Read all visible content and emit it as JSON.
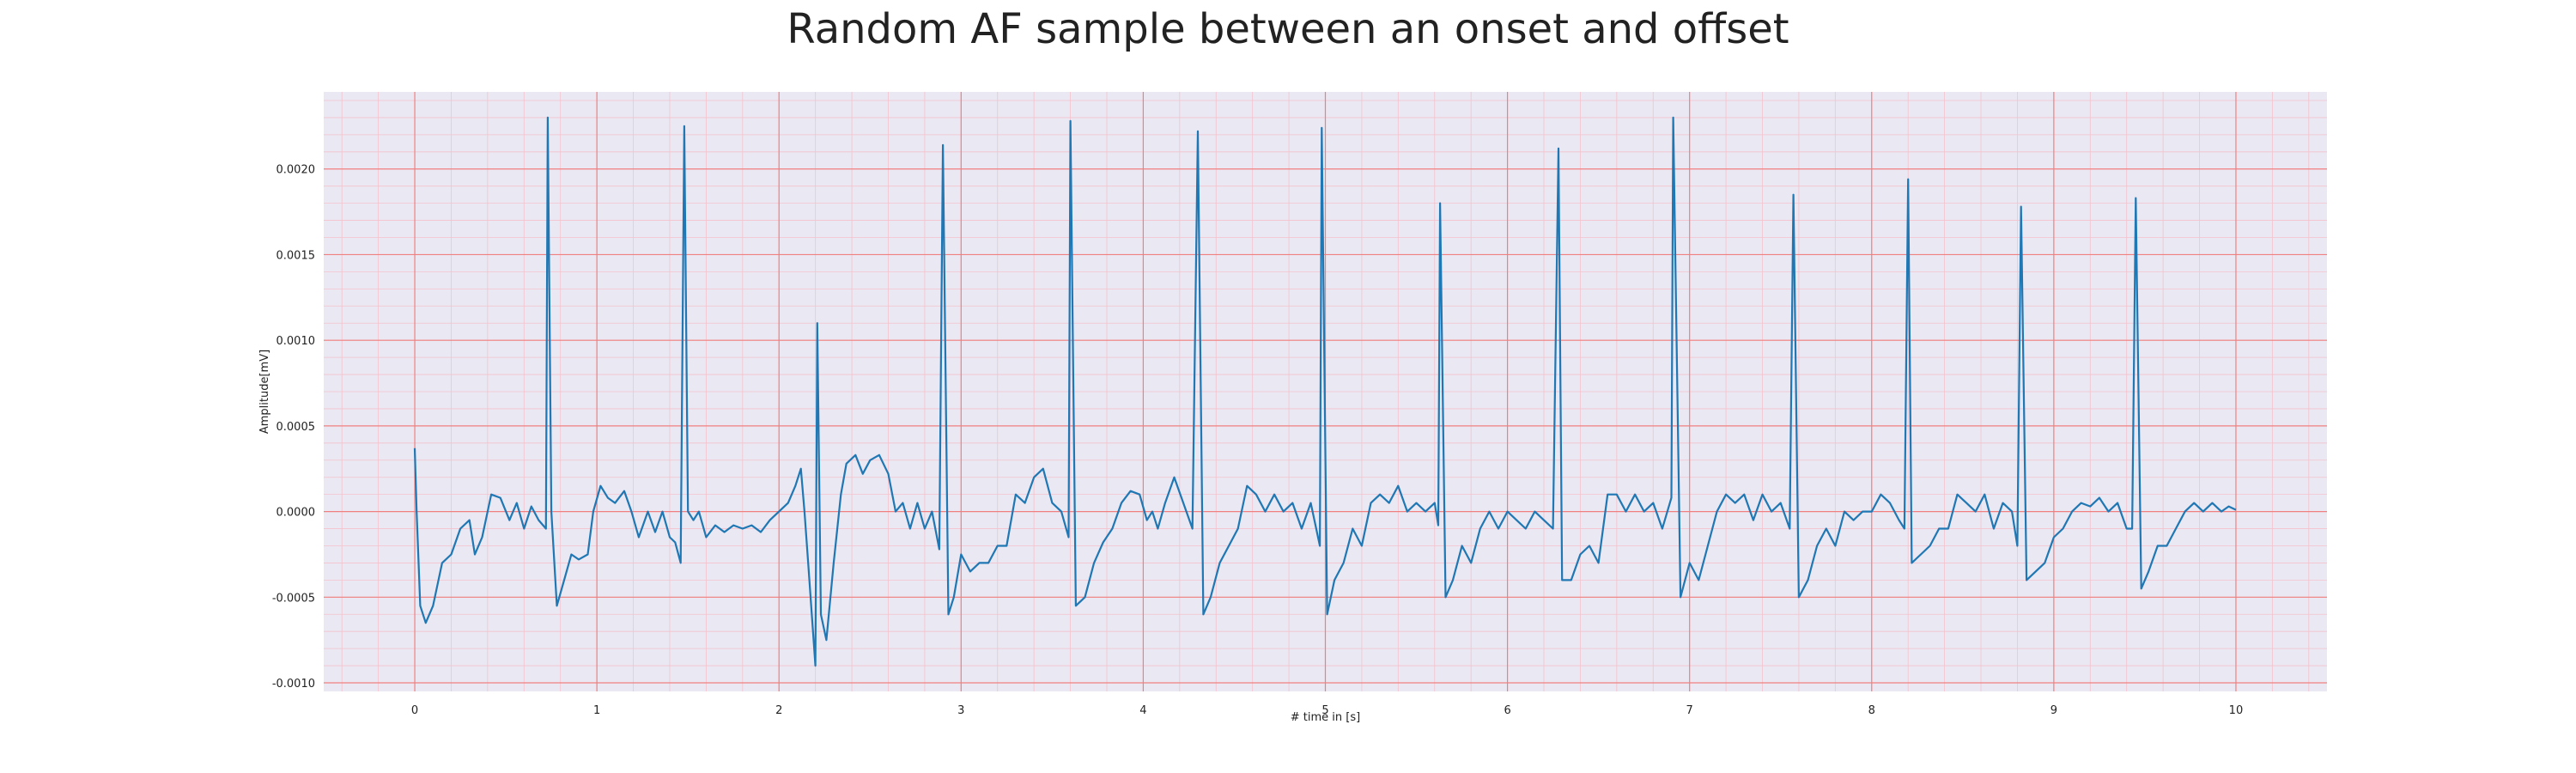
{
  "chart_data": {
    "type": "line",
    "title": "Random AF sample between an onset and offset",
    "xlabel": "# time in [s]",
    "ylabel": "Amplitude[mV]",
    "xlim": [
      -0.5,
      10.5
    ],
    "ylim": [
      -0.00105,
      0.00245
    ],
    "x_ticks": [
      0,
      1,
      2,
      3,
      4,
      5,
      6,
      7,
      8,
      9,
      10
    ],
    "x_tick_labels": [
      "0",
      "1",
      "2",
      "3",
      "4",
      "5",
      "6",
      "7",
      "8",
      "9",
      "10"
    ],
    "y_ticks": [
      -0.001,
      -0.0005,
      0.0,
      0.0005,
      0.001,
      0.0015,
      0.002
    ],
    "y_tick_labels": [
      "-0.0010",
      "-0.0005",
      "0.0000",
      "0.0005",
      "0.0010",
      "0.0015",
      "0.0020"
    ],
    "grid": true,
    "minor_grid": true,
    "colors": {
      "line": "#1f77b4",
      "background": "#eae8f2",
      "major_grid": "#f08080",
      "minor_grid": "#f4c2cc"
    },
    "series": [
      {
        "values": [
          [
            0.0,
            0.00037
          ],
          [
            0.01,
            0.0
          ],
          [
            0.03,
            -0.00055
          ],
          [
            0.06,
            -0.00065
          ],
          [
            0.1,
            -0.00055
          ],
          [
            0.15,
            -0.0003
          ],
          [
            0.2,
            -0.00025
          ],
          [
            0.25,
            -0.0001
          ],
          [
            0.3,
            -5e-05
          ],
          [
            0.33,
            -0.00025
          ],
          [
            0.37,
            -0.00015
          ],
          [
            0.42,
            0.0001
          ],
          [
            0.47,
            8e-05
          ],
          [
            0.52,
            -5e-05
          ],
          [
            0.56,
            5e-05
          ],
          [
            0.6,
            -0.0001
          ],
          [
            0.64,
            3e-05
          ],
          [
            0.68,
            -5e-05
          ],
          [
            0.72,
            -0.0001
          ],
          [
            0.73,
            0.0023
          ],
          [
            0.75,
            0.0
          ],
          [
            0.78,
            -0.00055
          ],
          [
            0.82,
            -0.0004
          ],
          [
            0.86,
            -0.00025
          ],
          [
            0.9,
            -0.00028
          ],
          [
            0.95,
            -0.00025
          ],
          [
            0.98,
            0.0
          ],
          [
            1.02,
            0.00015
          ],
          [
            1.06,
            8e-05
          ],
          [
            1.1,
            5e-05
          ],
          [
            1.15,
            0.00012
          ],
          [
            1.19,
            0.0
          ],
          [
            1.23,
            -0.00015
          ],
          [
            1.28,
            0.0
          ],
          [
            1.32,
            -0.00012
          ],
          [
            1.36,
            0.0
          ],
          [
            1.4,
            -0.00015
          ],
          [
            1.43,
            -0.00018
          ],
          [
            1.46,
            -0.0003
          ],
          [
            1.48,
            0.00225
          ],
          [
            1.5,
            0.0
          ],
          [
            1.53,
            -5e-05
          ],
          [
            1.56,
            0.0
          ],
          [
            1.6,
            -0.00015
          ],
          [
            1.65,
            -8e-05
          ],
          [
            1.7,
            -0.00012
          ],
          [
            1.75,
            -8e-05
          ],
          [
            1.8,
            -0.0001
          ],
          [
            1.85,
            -8e-05
          ],
          [
            1.9,
            -0.00012
          ],
          [
            1.95,
            -5e-05
          ],
          [
            2.0,
            0.0
          ],
          [
            2.05,
            5e-05
          ],
          [
            2.09,
            0.00015
          ],
          [
            2.12,
            0.00025
          ],
          [
            2.14,
            0.0
          ],
          [
            2.16,
            -0.0003
          ],
          [
            2.18,
            -0.0006
          ],
          [
            2.2,
            -0.0009
          ],
          [
            2.21,
            0.0011
          ],
          [
            2.23,
            -0.0006
          ],
          [
            2.26,
            -0.00075
          ],
          [
            2.3,
            -0.0003
          ],
          [
            2.34,
            0.0001
          ],
          [
            2.37,
            0.00028
          ],
          [
            2.42,
            0.00033
          ],
          [
            2.46,
            0.00022
          ],
          [
            2.5,
            0.0003
          ],
          [
            2.55,
            0.00033
          ],
          [
            2.6,
            0.00022
          ],
          [
            2.64,
            0.0
          ],
          [
            2.68,
            5e-05
          ],
          [
            2.72,
            -0.0001
          ],
          [
            2.76,
            5e-05
          ],
          [
            2.8,
            -0.0001
          ],
          [
            2.84,
            0.0
          ],
          [
            2.88,
            -0.00022
          ],
          [
            2.9,
            0.00214
          ],
          [
            2.93,
            -0.0006
          ],
          [
            2.96,
            -0.0005
          ],
          [
            3.0,
            -0.00025
          ],
          [
            3.05,
            -0.00035
          ],
          [
            3.1,
            -0.0003
          ],
          [
            3.15,
            -0.0003
          ],
          [
            3.2,
            -0.0002
          ],
          [
            3.25,
            -0.0002
          ],
          [
            3.3,
            0.0001
          ],
          [
            3.35,
            5e-05
          ],
          [
            3.4,
            0.0002
          ],
          [
            3.45,
            0.00025
          ],
          [
            3.5,
            5e-05
          ],
          [
            3.55,
            0.0
          ],
          [
            3.59,
            -0.00015
          ],
          [
            3.6,
            0.00228
          ],
          [
            3.63,
            -0.00055
          ],
          [
            3.68,
            -0.0005
          ],
          [
            3.73,
            -0.0003
          ],
          [
            3.78,
            -0.00018
          ],
          [
            3.83,
            -0.0001
          ],
          [
            3.88,
            5e-05
          ],
          [
            3.93,
            0.00012
          ],
          [
            3.98,
            0.0001
          ],
          [
            4.02,
            -5e-05
          ],
          [
            4.05,
            0.0
          ],
          [
            4.08,
            -0.0001
          ],
          [
            4.12,
            5e-05
          ],
          [
            4.17,
            0.0002
          ],
          [
            4.22,
            5e-05
          ],
          [
            4.27,
            -0.0001
          ],
          [
            4.3,
            0.00222
          ],
          [
            4.33,
            -0.0006
          ],
          [
            4.37,
            -0.0005
          ],
          [
            4.42,
            -0.0003
          ],
          [
            4.47,
            -0.0002
          ],
          [
            4.52,
            -0.0001
          ],
          [
            4.57,
            0.00015
          ],
          [
            4.62,
            0.0001
          ],
          [
            4.67,
            0.0
          ],
          [
            4.72,
            0.0001
          ],
          [
            4.77,
            0.0
          ],
          [
            4.82,
            5e-05
          ],
          [
            4.87,
            -0.0001
          ],
          [
            4.92,
            5e-05
          ],
          [
            4.97,
            -0.0002
          ],
          [
            4.98,
            0.00224
          ],
          [
            5.01,
            -0.0006
          ],
          [
            5.05,
            -0.0004
          ],
          [
            5.1,
            -0.0003
          ],
          [
            5.15,
            -0.0001
          ],
          [
            5.2,
            -0.0002
          ],
          [
            5.25,
            5e-05
          ],
          [
            5.3,
            0.0001
          ],
          [
            5.35,
            5e-05
          ],
          [
            5.4,
            0.00015
          ],
          [
            5.45,
            0.0
          ],
          [
            5.5,
            5e-05
          ],
          [
            5.55,
            0.0
          ],
          [
            5.6,
            5e-05
          ],
          [
            5.62,
            -8e-05
          ],
          [
            5.63,
            0.0018
          ],
          [
            5.66,
            -0.0005
          ],
          [
            5.7,
            -0.0004
          ],
          [
            5.75,
            -0.0002
          ],
          [
            5.8,
            -0.0003
          ],
          [
            5.85,
            -0.0001
          ],
          [
            5.9,
            0.0
          ],
          [
            5.95,
            -0.0001
          ],
          [
            6.0,
            0.0
          ],
          [
            6.05,
            -5e-05
          ],
          [
            6.1,
            -0.0001
          ],
          [
            6.15,
            0.0
          ],
          [
            6.2,
            -5e-05
          ],
          [
            6.25,
            -0.0001
          ],
          [
            6.28,
            0.00212
          ],
          [
            6.3,
            -0.0004
          ],
          [
            6.35,
            -0.0004
          ],
          [
            6.4,
            -0.00025
          ],
          [
            6.45,
            -0.0002
          ],
          [
            6.5,
            -0.0003
          ],
          [
            6.55,
            0.0001
          ],
          [
            6.6,
            0.0001
          ],
          [
            6.65,
            0.0
          ],
          [
            6.7,
            0.0001
          ],
          [
            6.75,
            0.0
          ],
          [
            6.8,
            5e-05
          ],
          [
            6.85,
            -0.0001
          ],
          [
            6.9,
            8e-05
          ],
          [
            6.91,
            0.0023
          ],
          [
            6.95,
            -0.0005
          ],
          [
            7.0,
            -0.0003
          ],
          [
            7.05,
            -0.0004
          ],
          [
            7.1,
            -0.0002
          ],
          [
            7.15,
            0.0
          ],
          [
            7.2,
            0.0001
          ],
          [
            7.25,
            5e-05
          ],
          [
            7.3,
            0.0001
          ],
          [
            7.35,
            -5e-05
          ],
          [
            7.4,
            0.0001
          ],
          [
            7.45,
            0.0
          ],
          [
            7.5,
            5e-05
          ],
          [
            7.55,
            -0.0001
          ],
          [
            7.57,
            0.00185
          ],
          [
            7.6,
            -0.0005
          ],
          [
            7.65,
            -0.0004
          ],
          [
            7.7,
            -0.0002
          ],
          [
            7.75,
            -0.0001
          ],
          [
            7.8,
            -0.0002
          ],
          [
            7.85,
            0.0
          ],
          [
            7.9,
            -5e-05
          ],
          [
            7.95,
            0.0
          ],
          [
            8.0,
            0.0
          ],
          [
            8.05,
            0.0001
          ],
          [
            8.1,
            5e-05
          ],
          [
            8.15,
            -5e-05
          ],
          [
            8.18,
            -0.0001
          ],
          [
            8.2,
            0.00194
          ],
          [
            8.22,
            -0.0003
          ],
          [
            8.27,
            -0.00025
          ],
          [
            8.32,
            -0.0002
          ],
          [
            8.37,
            -0.0001
          ],
          [
            8.42,
            -0.0001
          ],
          [
            8.47,
            0.0001
          ],
          [
            8.52,
            5e-05
          ],
          [
            8.57,
            0.0
          ],
          [
            8.62,
            0.0001
          ],
          [
            8.67,
            -0.0001
          ],
          [
            8.72,
            5e-05
          ],
          [
            8.77,
            0.0
          ],
          [
            8.8,
            -0.0002
          ],
          [
            8.82,
            0.00178
          ],
          [
            8.85,
            -0.0004
          ],
          [
            8.9,
            -0.00035
          ],
          [
            8.95,
            -0.0003
          ],
          [
            9.0,
            -0.00015
          ],
          [
            9.05,
            -0.0001
          ],
          [
            9.1,
            0.0
          ],
          [
            9.15,
            5e-05
          ],
          [
            9.2,
            3e-05
          ],
          [
            9.25,
            8e-05
          ],
          [
            9.3,
            0.0
          ],
          [
            9.35,
            5e-05
          ],
          [
            9.4,
            -0.0001
          ],
          [
            9.43,
            -0.0001
          ],
          [
            9.45,
            0.00183
          ],
          [
            9.48,
            -0.00045
          ],
          [
            9.52,
            -0.00035
          ],
          [
            9.57,
            -0.0002
          ],
          [
            9.62,
            -0.0002
          ],
          [
            9.67,
            -0.0001
          ],
          [
            9.72,
            0.0
          ],
          [
            9.77,
            5e-05
          ],
          [
            9.82,
            0.0
          ],
          [
            9.87,
            5e-05
          ],
          [
            9.92,
            0.0
          ],
          [
            9.96,
            3e-05
          ],
          [
            10.0,
            1e-05
          ]
        ]
      }
    ]
  }
}
